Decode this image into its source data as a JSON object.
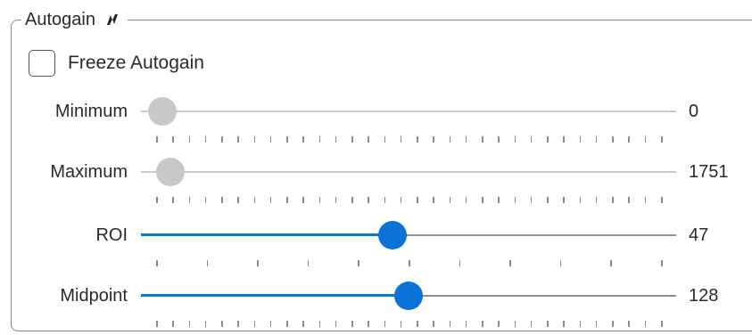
{
  "group": {
    "title": "Autogain",
    "icon": "lightning-icon"
  },
  "freeze": {
    "label": "Freeze Autogain",
    "checked": false
  },
  "sliders": [
    {
      "label": "Minimum",
      "value": "0",
      "fraction": 0.04,
      "fill": false,
      "active": false,
      "tick_count": 32
    },
    {
      "label": "Maximum",
      "value": "1751",
      "fraction": 0.055,
      "fill": false,
      "active": false,
      "tick_count": 32
    },
    {
      "label": "ROI",
      "value": "47",
      "fraction": 0.47,
      "fill": true,
      "active": true,
      "tick_count": 11
    },
    {
      "label": "Midpoint",
      "value": "128",
      "fraction": 0.5,
      "fill": true,
      "active": true,
      "tick_count": 32
    }
  ],
  "colors": {
    "accent": "#0b73d8",
    "fill": "#0b7bc9",
    "inactive_thumb": "#c8c8c8"
  }
}
